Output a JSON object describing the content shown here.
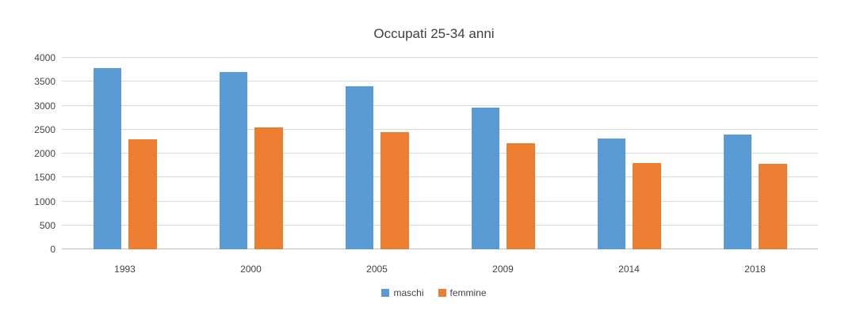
{
  "title": "Occupati 25-34 anni",
  "chart_data": {
    "type": "bar",
    "title": "Occupati 25-34 anni",
    "categories": [
      "1993",
      "2000",
      "2005",
      "2009",
      "2014",
      "2018"
    ],
    "series": [
      {
        "name": "maschi",
        "color": "#5B9BD5",
        "values": [
          3790,
          3700,
          3400,
          2960,
          2320,
          2400
        ]
      },
      {
        "name": "femmine",
        "color": "#ED7D31",
        "values": [
          2290,
          2540,
          2440,
          2210,
          1800,
          1780
        ]
      }
    ],
    "xlabel": "",
    "ylabel": "",
    "ylim": [
      0,
      4000
    ],
    "ytick_step": 500,
    "yticks": [
      0,
      500,
      1000,
      1500,
      2000,
      2500,
      3000,
      3500,
      4000
    ],
    "grid": true,
    "legend_position": "bottom",
    "grid_color": "#D9D9D9",
    "axis_color": "#BFBFBF",
    "tick_text_color": "#444444",
    "title_color": "#404040",
    "background_color": "#FFFFFF"
  }
}
